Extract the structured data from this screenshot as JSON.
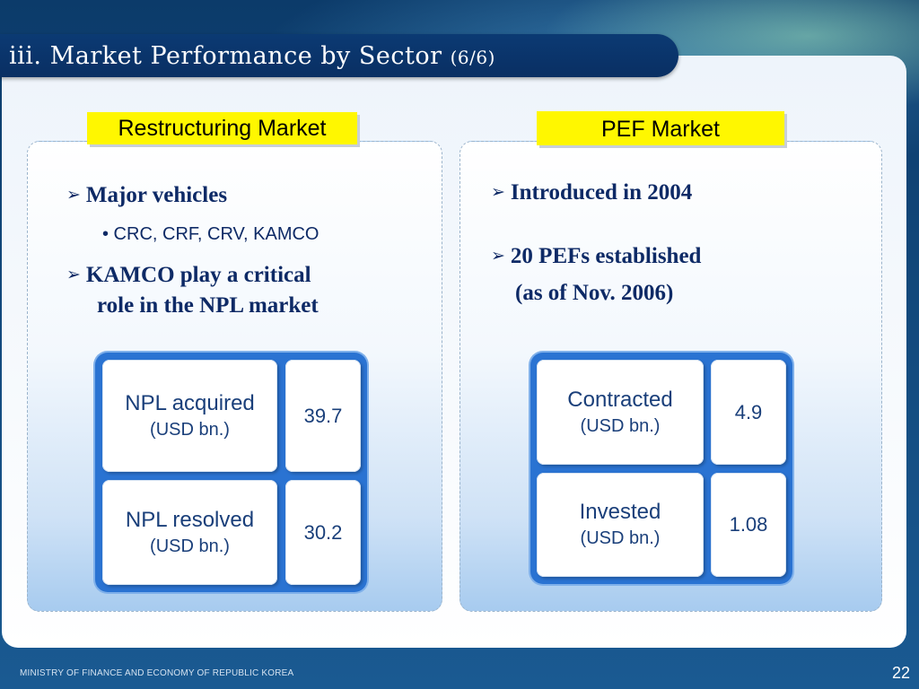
{
  "slide": {
    "title": "iii. Market Performance by Sector",
    "title_suffix": "(6/6)",
    "footer": "MINISTRY OF FINANCE AND ECONOMY OF REPUBLIC KOREA",
    "page_number": "22"
  },
  "left_panel": {
    "tag": "Restructuring Market",
    "bullet1": "Major vehicles",
    "sub_bullet": "• CRC, CRF, CRV, KAMCO",
    "bullet2_line1": "KAMCO play a critical",
    "bullet2_line2": "role in the NPL market",
    "table": {
      "row1_label": "NPL acquired",
      "row1_unit": "(USD bn.)",
      "row1_value": "39.7",
      "row2_label": "NPL resolved",
      "row2_unit": "(USD bn.)",
      "row2_value": "30.2"
    }
  },
  "right_panel": {
    "tag": "PEF Market",
    "bullet1": "Introduced in 2004",
    "bullet2_line1": "20 PEFs established",
    "bullet2_line2": "(as of Nov. 2006)",
    "table": {
      "row1_label": "Contracted",
      "row1_unit": "(USD bn.)",
      "row1_value": "4.9",
      "row2_label": "Invested",
      "row2_unit": "(USD bn.)",
      "row2_value": "1.08"
    }
  },
  "colors": {
    "accent_yellow": "#fff700",
    "title_bar": "#0b3a73",
    "grid_blue": "#2a73d2",
    "text_navy": "#0e2a66"
  },
  "icons": {
    "bullet_marker": "arrowhead-bullet-icon"
  }
}
